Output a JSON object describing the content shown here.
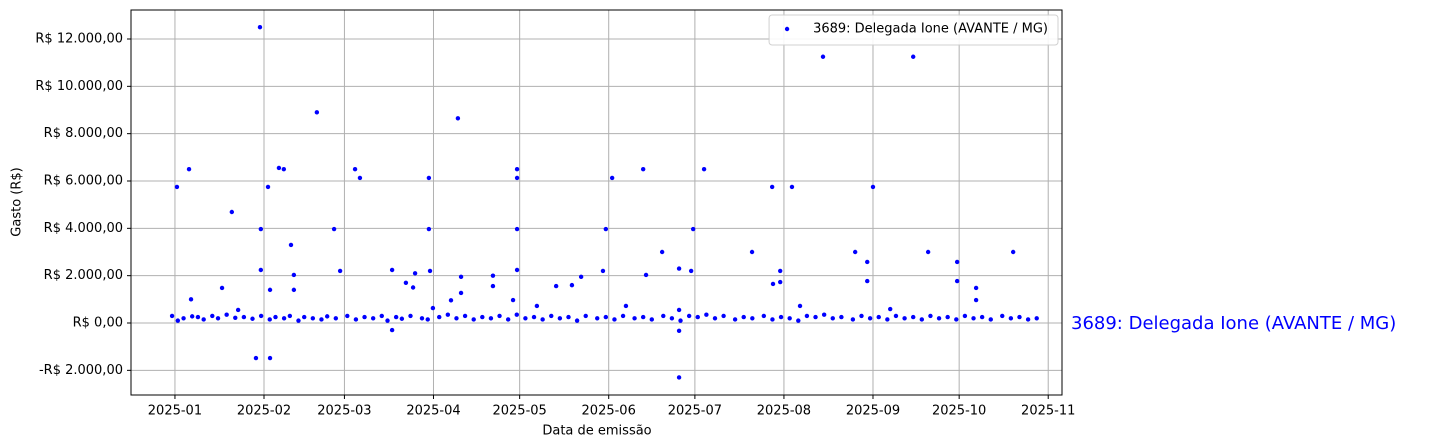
{
  "chart_data": {
    "type": "scatter",
    "x_label": "Data de emissão",
    "y_label": "Gasto (R$)",
    "annotation": "3689: Delegada Ione (AVANTE / MG)",
    "legend": "upper right",
    "grid": true,
    "xlim": [
      -15.3,
      308.8
    ],
    "xticks": [
      {
        "value": 0,
        "label": "2025-01"
      },
      {
        "value": 31,
        "label": "2025-02"
      },
      {
        "value": 59,
        "label": "2025-03"
      },
      {
        "value": 90,
        "label": "2025-04"
      },
      {
        "value": 120,
        "label": "2025-05"
      },
      {
        "value": 151,
        "label": "2025-06"
      },
      {
        "value": 181,
        "label": "2025-07"
      },
      {
        "value": 212,
        "label": "2025-08"
      },
      {
        "value": 243,
        "label": "2025-09"
      },
      {
        "value": 273,
        "label": "2025-10"
      },
      {
        "value": 304,
        "label": "2025-11"
      }
    ],
    "ylim": [
      -3042,
      13225
    ],
    "yticks": [
      {
        "value": -2000,
        "label": "-R$ 2.000,00"
      },
      {
        "value": 0,
        "label": "R$ 0,00"
      },
      {
        "value": 2000,
        "label": "R$ 2.000,00"
      },
      {
        "value": 4000,
        "label": "R$ 4.000,00"
      },
      {
        "value": 6000,
        "label": "R$ 6.000,00"
      },
      {
        "value": 8000,
        "label": "R$ 8.000,00"
      },
      {
        "value": 10000,
        "label": "R$ 10.000,00"
      },
      {
        "value": 12000,
        "label": "R$ 12.000,00"
      }
    ],
    "x": [
      0.7,
      4.9,
      5.6,
      16.4,
      19.8,
      22,
      28.2,
      29.6,
      29.9,
      29.9,
      32.4,
      33.1,
      33.1,
      36.2,
      37.9,
      40.4,
      41.4,
      41.4,
      49.4,
      55.4,
      57.5,
      62.7,
      64.4,
      75.6,
      75.6,
      80.4,
      82.9,
      83.6,
      88.4,
      88.4,
      88.8,
      89.8,
      96.1,
      98.5,
      99.6,
      99.6,
      110.7,
      110.7,
      117.7,
      119.1,
      119.1,
      119.1,
      119.1,
      126,
      132.7,
      138.2,
      141.4,
      149,
      150,
      152.2,
      157,
      163,
      164,
      169.6,
      175.5,
      175.5,
      175.5,
      175.5,
      179.7,
      180.4,
      184.2,
      200.9,
      207.9,
      208.2,
      210.7,
      210.7,
      214.8,
      217.6,
      225.6,
      236.8,
      241,
      241,
      243,
      249,
      257,
      262.2,
      272.3,
      272.3,
      278.9,
      278.9,
      291.8,
      -1,
      1,
      3,
      6,
      8,
      10,
      13,
      15,
      18,
      21,
      24,
      27,
      30,
      33,
      35,
      38,
      40,
      43,
      45,
      48,
      51,
      53,
      56,
      60,
      63,
      66,
      69,
      72,
      74,
      77,
      79,
      82,
      86,
      88,
      92,
      95,
      98,
      101,
      104,
      107,
      110,
      113,
      116,
      119,
      122,
      125,
      128,
      131,
      134,
      137,
      140,
      143,
      147,
      150,
      153,
      156,
      160,
      163,
      166,
      170,
      173,
      176,
      179,
      182,
      185,
      188,
      191,
      195,
      198,
      201,
      205,
      208,
      211,
      214,
      217,
      220,
      223,
      226,
      229,
      232,
      236,
      239,
      242,
      245,
      248,
      251,
      254,
      257,
      260,
      263,
      266,
      269,
      272,
      275,
      278,
      281,
      284,
      288,
      291,
      294,
      297,
      300
    ],
    "series": [
      {
        "name": "3689: Delegada Ione (AVANTE / MG)",
        "color": "#0000ff",
        "values": [
          5750,
          6500,
          1000,
          1480,
          4690,
          550,
          -1480,
          12500,
          3970,
          2240,
          5750,
          -1480,
          1400,
          6550,
          6500,
          3300,
          1400,
          2030,
          8900,
          3970,
          2200,
          6500,
          6130,
          2240,
          -300,
          1700,
          1500,
          2100,
          6130,
          3970,
          2200,
          630,
          960,
          8650,
          1950,
          1270,
          2000,
          1560,
          970,
          6500,
          6130,
          3970,
          2240,
          720,
          1560,
          1600,
          1950,
          2200,
          3970,
          6130,
          720,
          6500,
          2030,
          3000,
          2300,
          550,
          -330,
          -2300,
          2200,
          3970,
          6500,
          3000,
          5750,
          1650,
          2200,
          1730,
          5750,
          720,
          11250,
          3000,
          2580,
          1770,
          5750,
          590,
          11250,
          3000,
          2580,
          1770,
          1480,
          970,
          3000,
          300,
          100,
          200,
          280,
          250,
          150,
          300,
          200,
          350,
          220,
          250,
          180,
          300,
          150,
          250,
          200,
          300,
          100,
          250,
          200,
          150,
          280,
          200,
          300,
          150,
          250,
          200,
          300,
          100,
          250,
          180,
          300,
          200,
          150,
          250,
          350,
          200,
          300,
          150,
          250,
          200,
          300,
          150,
          350,
          200,
          250,
          150,
          300,
          200,
          250,
          100,
          300,
          200,
          250,
          150,
          300,
          200,
          250,
          150,
          300,
          200,
          100,
          300,
          250,
          350,
          200,
          300,
          150,
          250,
          200,
          300,
          150,
          250,
          200,
          100,
          300,
          250,
          350,
          200,
          250,
          150,
          300,
          200,
          250,
          150,
          300,
          200,
          250,
          150,
          300,
          200,
          250,
          150,
          300,
          200,
          250,
          150,
          300,
          200,
          250,
          150,
          200
        ]
      }
    ]
  }
}
